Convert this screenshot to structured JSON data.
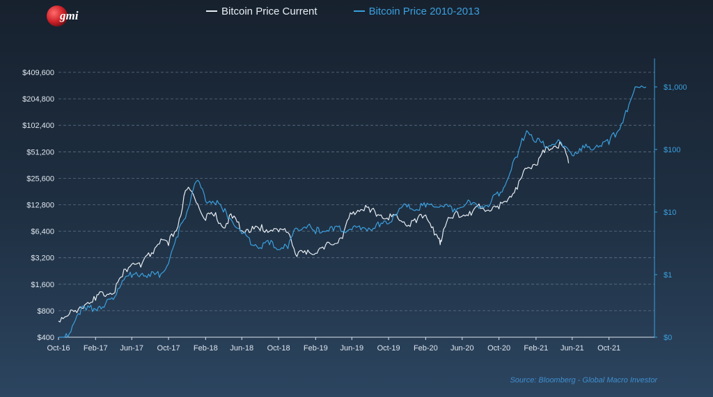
{
  "logo": {
    "text": "gmi",
    "color": "#d0232b"
  },
  "legend": [
    {
      "label": "Bitcoin Price Current",
      "color": "#e8eef4"
    },
    {
      "label": "Bitcoin Price 2010-2013",
      "color": "#3aa0df"
    }
  ],
  "source": "Source: Bloomberg - Global Macro Investor",
  "chart_data": {
    "type": "line",
    "grid": true,
    "left_axis": {
      "scale": "log2",
      "ylim": [
        400,
        409600
      ],
      "ticks": [
        400,
        800,
        1600,
        3200,
        6400,
        12800,
        25600,
        51200,
        102400,
        204800,
        409600
      ],
      "tick_labels": [
        "$400",
        "$800",
        "$1,600",
        "$3,200",
        "$6,400",
        "$12,800",
        "$25,600",
        "$51,200",
        "$102,400",
        "$204,800",
        "$409,600"
      ]
    },
    "right_axis": {
      "scale": "log10",
      "ylim": [
        0.1,
        1000
      ],
      "ticks": [
        0.1,
        1,
        10,
        100,
        1000
      ],
      "tick_labels": [
        "$0",
        "$1",
        "$10",
        "$100",
        "$1,000"
      ],
      "color": "#3aa0df"
    },
    "x_axis": {
      "range": [
        "2016-10-01",
        "2022-03-01"
      ],
      "ticks": [
        "2016-10-01",
        "2017-02-01",
        "2017-06-01",
        "2017-10-01",
        "2018-02-01",
        "2018-06-01",
        "2018-10-01",
        "2019-02-01",
        "2019-06-01",
        "2019-10-01",
        "2020-02-01",
        "2020-06-01",
        "2020-10-01",
        "2021-02-01",
        "2021-06-01",
        "2021-10-01"
      ],
      "tick_labels": [
        "Oct-16",
        "Feb-17",
        "Jun-17",
        "Oct-17",
        "Feb-18",
        "Jun-18",
        "Oct-18",
        "Feb-19",
        "Jun-19",
        "Oct-19",
        "Feb-20",
        "Jun-20",
        "Oct-20",
        "Feb-21",
        "Jun-21",
        "Oct-21"
      ]
    },
    "series": [
      {
        "name": "Bitcoin Price Current",
        "axis": "left",
        "color": "#e8eef4",
        "points": [
          [
            "2016-10-01",
            610
          ],
          [
            "2016-11-01",
            700
          ],
          [
            "2016-12-01",
            760
          ],
          [
            "2017-01-01",
            960
          ],
          [
            "2017-02-01",
            1050
          ],
          [
            "2017-03-01",
            1180
          ],
          [
            "2017-04-01",
            1250
          ],
          [
            "2017-05-01",
            1950
          ],
          [
            "2017-06-01",
            2700
          ],
          [
            "2017-07-01",
            2500
          ],
          [
            "2017-08-01",
            3300
          ],
          [
            "2017-09-01",
            4600
          ],
          [
            "2017-10-01",
            4400
          ],
          [
            "2017-11-01",
            7200
          ],
          [
            "2017-12-01",
            19000
          ],
          [
            "2018-01-01",
            13500
          ],
          [
            "2018-02-01",
            8500
          ],
          [
            "2018-03-01",
            9500
          ],
          [
            "2018-04-01",
            7000
          ],
          [
            "2018-05-01",
            9000
          ],
          [
            "2018-06-01",
            6500
          ],
          [
            "2018-07-01",
            6300
          ],
          [
            "2018-08-01",
            6500
          ],
          [
            "2018-09-01",
            6400
          ],
          [
            "2018-10-01",
            6300
          ],
          [
            "2018-11-01",
            6200
          ],
          [
            "2018-12-01",
            3300
          ],
          [
            "2019-01-01",
            3500
          ],
          [
            "2019-02-01",
            3600
          ],
          [
            "2019-03-01",
            4000
          ],
          [
            "2019-04-01",
            4500
          ],
          [
            "2019-05-01",
            5300
          ],
          [
            "2019-06-01",
            10000
          ],
          [
            "2019-07-01",
            11300
          ],
          [
            "2019-08-01",
            10500
          ],
          [
            "2019-09-01",
            9700
          ],
          [
            "2019-10-01",
            8600
          ],
          [
            "2019-11-01",
            9000
          ],
          [
            "2019-12-01",
            7300
          ],
          [
            "2020-01-01",
            8000
          ],
          [
            "2020-02-01",
            9800
          ],
          [
            "2020-03-01",
            5800
          ],
          [
            "2020-03-20",
            4500
          ],
          [
            "2020-04-01",
            6800
          ],
          [
            "2020-05-01",
            9000
          ],
          [
            "2020-06-01",
            9500
          ],
          [
            "2020-07-01",
            9700
          ],
          [
            "2020-08-01",
            11600
          ],
          [
            "2020-09-01",
            10800
          ],
          [
            "2020-10-01",
            11500
          ],
          [
            "2020-11-01",
            15000
          ],
          [
            "2020-12-01",
            19200
          ],
          [
            "2021-01-01",
            33000
          ],
          [
            "2021-02-01",
            36000
          ],
          [
            "2021-03-01",
            50000
          ],
          [
            "2021-04-01",
            59000
          ],
          [
            "2021-05-01",
            58000
          ],
          [
            "2021-05-20",
            38000
          ]
        ]
      },
      {
        "name": "Bitcoin Price 2010-2013",
        "axis": "right",
        "color": "#3aa0df",
        "points": [
          [
            "2016-10-01",
            0.06
          ],
          [
            "2016-11-01",
            0.1
          ],
          [
            "2016-12-01",
            0.22
          ],
          [
            "2017-01-01",
            0.27
          ],
          [
            "2017-02-01",
            0.28
          ],
          [
            "2017-03-01",
            0.3
          ],
          [
            "2017-04-01",
            0.4
          ],
          [
            "2017-05-01",
            0.8
          ],
          [
            "2017-06-01",
            0.9
          ],
          [
            "2017-07-01",
            1.0
          ],
          [
            "2017-08-01",
            0.93
          ],
          [
            "2017-09-01",
            0.9
          ],
          [
            "2017-10-01",
            1.5
          ],
          [
            "2017-11-01",
            4.0
          ],
          [
            "2017-12-01",
            10
          ],
          [
            "2018-01-01",
            31
          ],
          [
            "2018-02-01",
            15
          ],
          [
            "2018-03-01",
            14
          ],
          [
            "2018-04-01",
            10
          ],
          [
            "2018-05-01",
            7
          ],
          [
            "2018-06-01",
            4.5
          ],
          [
            "2018-07-01",
            3.0
          ],
          [
            "2018-08-01",
            2.7
          ],
          [
            "2018-09-01",
            3.0
          ],
          [
            "2018-10-01",
            2.5
          ],
          [
            "2018-11-01",
            2.6
          ],
          [
            "2018-12-01",
            5.5
          ],
          [
            "2019-01-01",
            5.5
          ],
          [
            "2019-02-01",
            4.5
          ],
          [
            "2019-03-01",
            4.9
          ],
          [
            "2019-04-01",
            5.0
          ],
          [
            "2019-05-01",
            4.8
          ],
          [
            "2019-06-01",
            5.2
          ],
          [
            "2019-07-01",
            5.2
          ],
          [
            "2019-08-01",
            5.3
          ],
          [
            "2019-09-01",
            5.8
          ],
          [
            "2019-10-01",
            6.5
          ],
          [
            "2019-11-01",
            10
          ],
          [
            "2019-12-01",
            12
          ],
          [
            "2020-01-01",
            11
          ],
          [
            "2020-02-01",
            12
          ],
          [
            "2020-03-01",
            12
          ],
          [
            "2020-04-01",
            12
          ],
          [
            "2020-05-01",
            10
          ],
          [
            "2020-06-01",
            12
          ],
          [
            "2020-07-01",
            13
          ],
          [
            "2020-08-01",
            12
          ],
          [
            "2020-09-01",
            13
          ],
          [
            "2020-10-01",
            18
          ],
          [
            "2020-11-01",
            35
          ],
          [
            "2020-12-01",
            75
          ],
          [
            "2021-01-01",
            200
          ],
          [
            "2021-02-01",
            130
          ],
          [
            "2021-03-01",
            110
          ],
          [
            "2021-04-01",
            120
          ],
          [
            "2021-05-01",
            110
          ],
          [
            "2021-06-01",
            80
          ],
          [
            "2021-07-01",
            95
          ],
          [
            "2021-08-01",
            100
          ],
          [
            "2021-09-01",
            115
          ],
          [
            "2021-10-01",
            120
          ],
          [
            "2021-11-01",
            200
          ],
          [
            "2021-12-01",
            400
          ],
          [
            "2022-01-01",
            1000
          ],
          [
            "2022-02-01",
            1000
          ]
        ]
      }
    ]
  }
}
